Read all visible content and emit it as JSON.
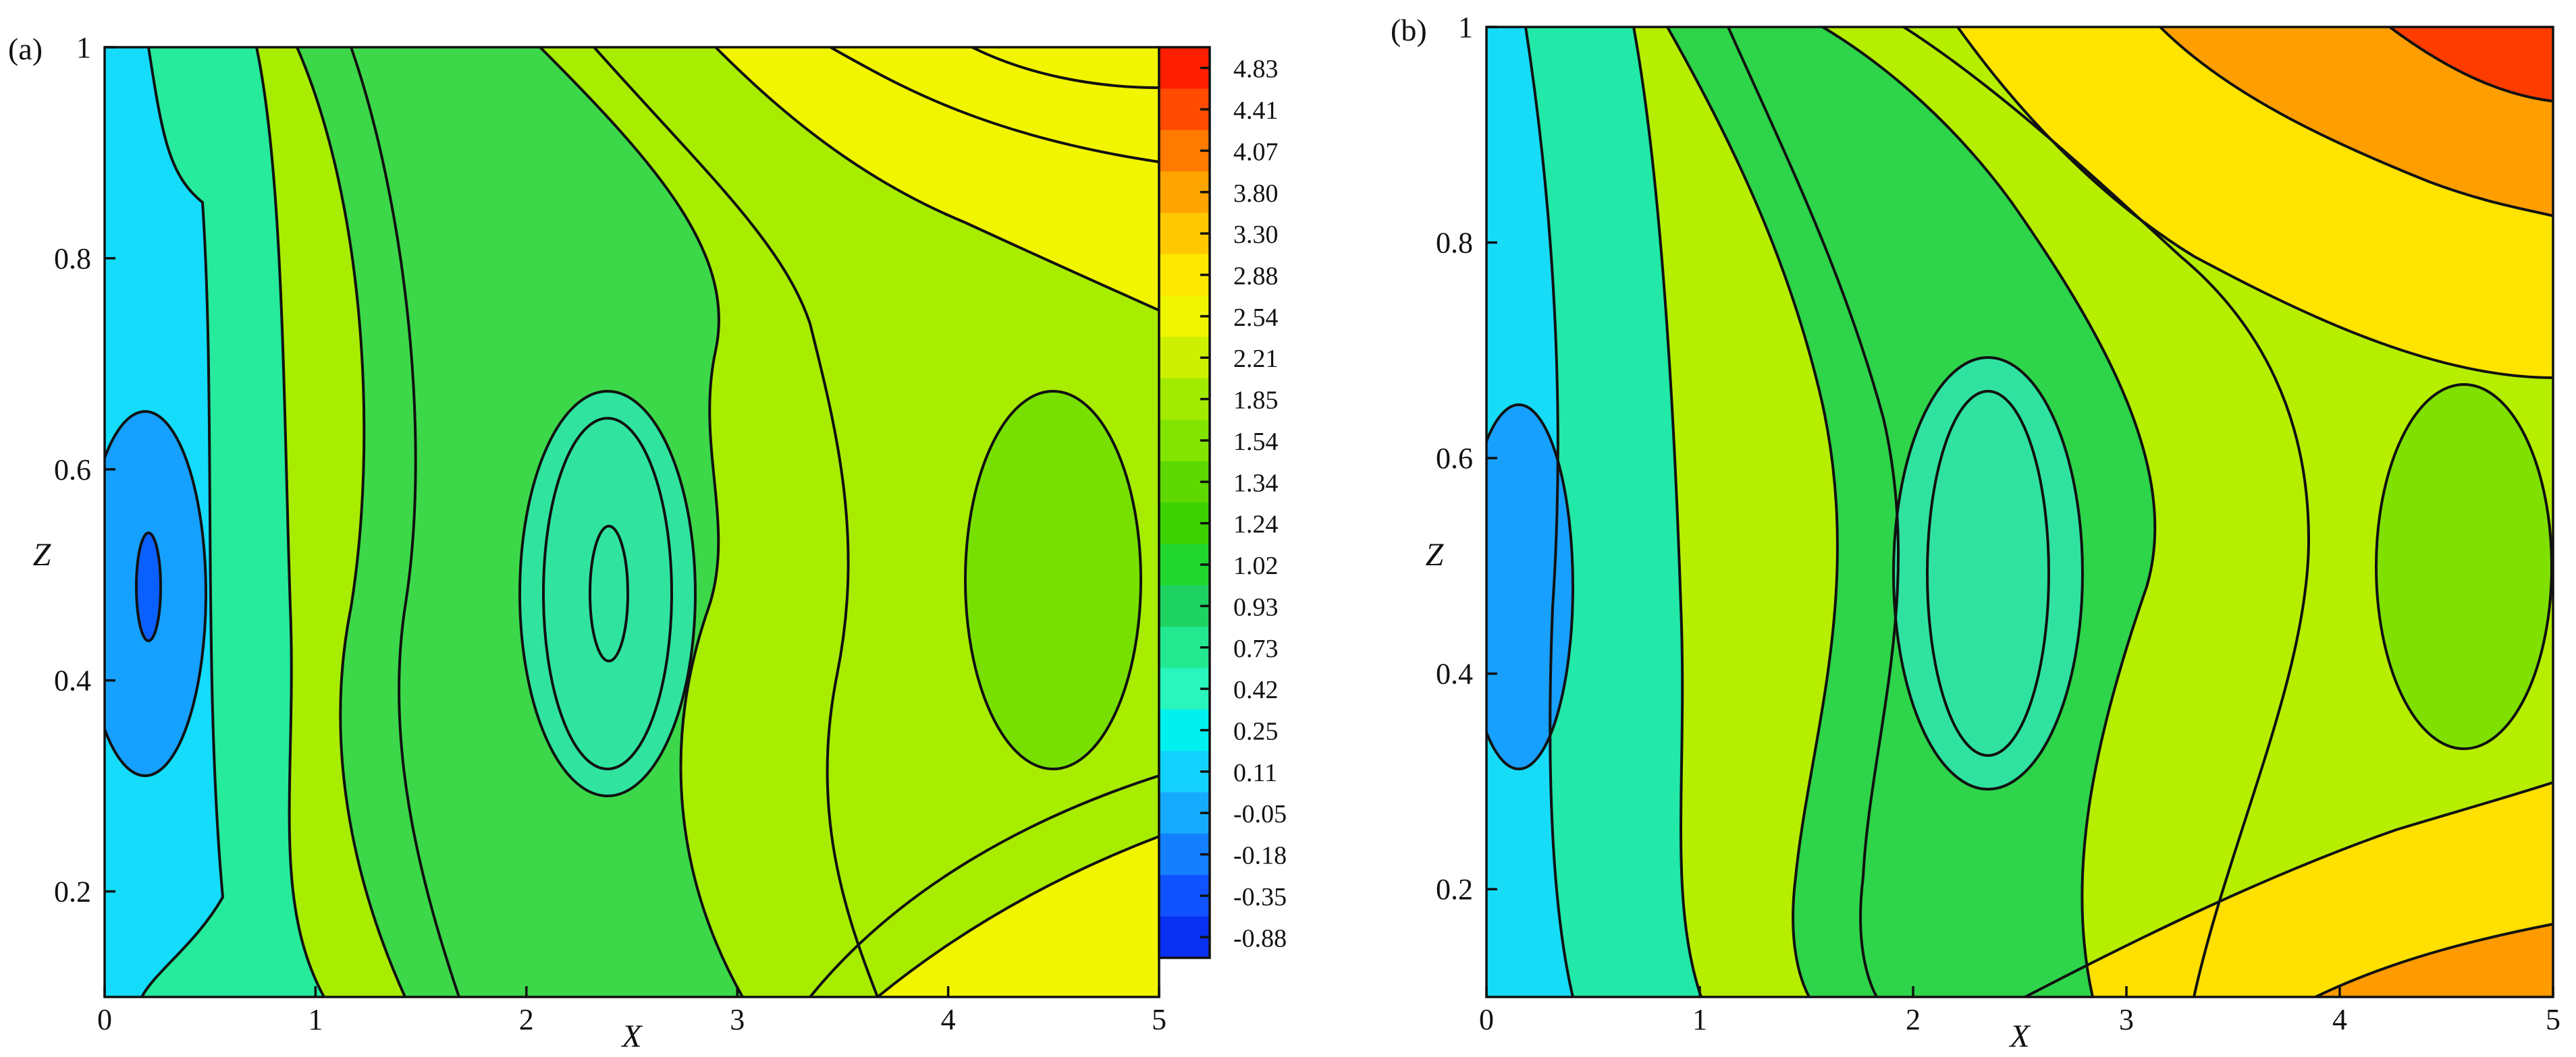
{
  "chart_data": [
    {
      "type": "contour",
      "panel_label": "(a)",
      "xlabel": "X",
      "ylabel": "Z",
      "xlim": [
        0,
        5
      ],
      "ylim": [
        0.1,
        1.0
      ],
      "xticks": [
        {
          "value": 0,
          "label": "0"
        },
        {
          "value": 1,
          "label": "1"
        },
        {
          "value": 2,
          "label": "2"
        },
        {
          "value": 3,
          "label": "3"
        },
        {
          "value": 4,
          "label": "4"
        },
        {
          "value": 5,
          "label": "5"
        }
      ],
      "yticks": [
        {
          "value": 0.2,
          "label": "0.2"
        },
        {
          "value": 0.4,
          "label": "0.4"
        },
        {
          "value": 0.6,
          "label": "0.6"
        },
        {
          "value": 0.8,
          "label": "0.8"
        },
        {
          "value": 1.0,
          "label": "1"
        }
      ],
      "colorbar": {
        "levels": [
          "4.83",
          "4.41",
          "4.07",
          "3.80",
          "3.30",
          "2.88",
          "2.54",
          "2.21",
          "1.85",
          "1.54",
          "1.34",
          "1.24",
          "1.02",
          "0.93",
          "0.73",
          "0.42",
          "0.25",
          "0.11",
          "-0.05",
          "-0.18",
          "-0.35",
          "-0.88"
        ],
        "colors": [
          "#ff1e00",
          "#ff4a00",
          "#ff7a00",
          "#ffa400",
          "#ffc800",
          "#ffe800",
          "#f0f500",
          "#ccf000",
          "#a2ea00",
          "#82e400",
          "#5ed800",
          "#3cd200",
          "#22d630",
          "#1ed262",
          "#22e890",
          "#28f6bc",
          "#00f0f0",
          "#14d2ff",
          "#16aaff",
          "#1480ff",
          "#1052ff",
          "#0830f0"
        ]
      }
    },
    {
      "type": "contour",
      "panel_label": "(b)",
      "xlabel": "X",
      "ylabel": "Z",
      "xlim": [
        0,
        5
      ],
      "ylim": [
        0.1,
        1.0
      ],
      "xticks": [
        {
          "value": 0,
          "label": "0"
        },
        {
          "value": 1,
          "label": "1"
        },
        {
          "value": 2,
          "label": "2"
        },
        {
          "value": 3,
          "label": "3"
        },
        {
          "value": 4,
          "label": "4"
        },
        {
          "value": 5,
          "label": "5"
        }
      ],
      "yticks": [
        {
          "value": 0.2,
          "label": "0.2"
        },
        {
          "value": 0.4,
          "label": "0.4"
        },
        {
          "value": 0.6,
          "label": "0.6"
        },
        {
          "value": 0.8,
          "label": "0.8"
        },
        {
          "value": 1.0,
          "label": "1"
        }
      ]
    }
  ]
}
